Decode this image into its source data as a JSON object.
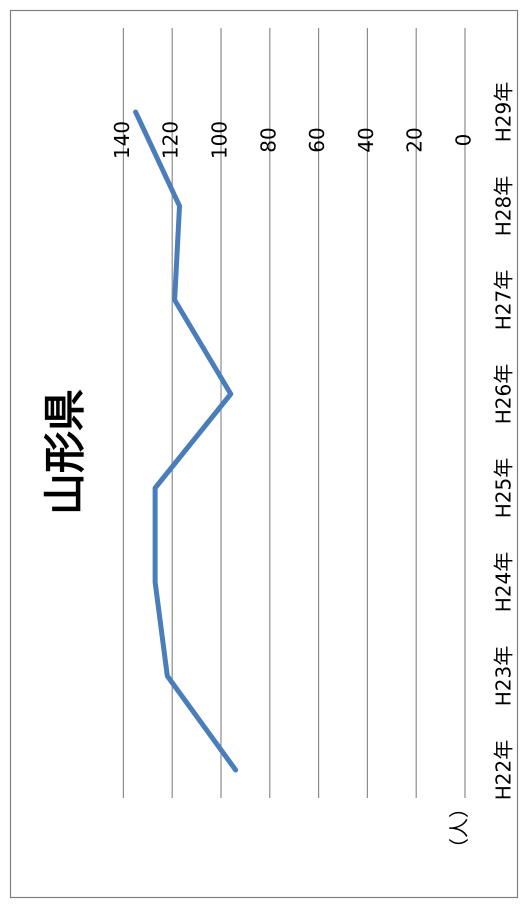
{
  "chart_data": {
    "type": "line",
    "title": "山形県",
    "unit": "（人）",
    "categories": [
      "H22年",
      "H23年",
      "H24年",
      "H25年",
      "H26年",
      "H27年",
      "H28年",
      "H29年"
    ],
    "series": [
      {
        "values": [
          94,
          122,
          127,
          127,
          96,
          119,
          117,
          135
        ]
      }
    ],
    "ylim": [
      0,
      140
    ],
    "yticks": [
      0,
      20,
      40,
      60,
      80,
      100,
      120,
      140
    ],
    "grid": true,
    "line_color": "#4A7EBB",
    "grid_color": "#8C8C8C",
    "border_color": "#7F7F7F"
  }
}
